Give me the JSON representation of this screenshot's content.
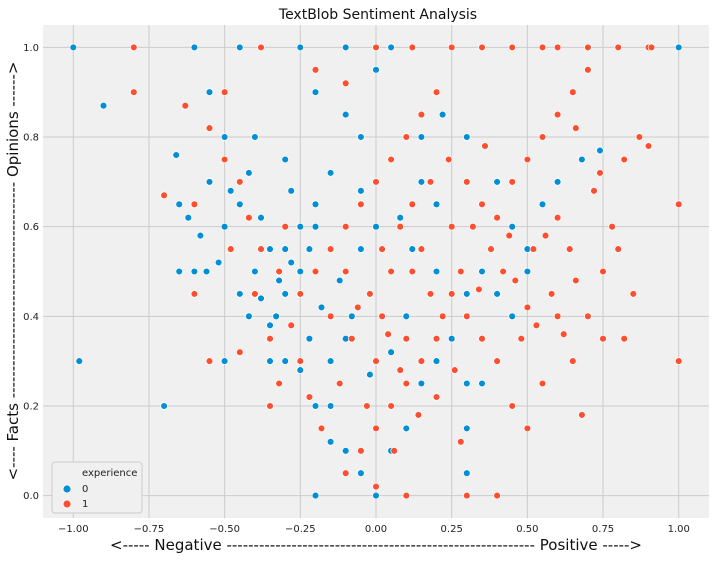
{
  "chart_data": {
    "type": "scatter",
    "title": "TextBlob Sentiment Analysis",
    "xlabel": "<----- Negative --------------------------------------------------------- Positive ----->",
    "ylabel": "<---- Facts ---------------------------------------- Opinions ------>",
    "xlim": [
      -1.1,
      1.1
    ],
    "ylim": [
      -0.05,
      1.05
    ],
    "xticks": [
      -1.0,
      -0.75,
      -0.5,
      -0.25,
      0.0,
      0.25,
      0.5,
      0.75,
      1.0
    ],
    "xtick_labels": [
      "−1.00",
      "−0.75",
      "−0.50",
      "−0.25",
      "0.00",
      "0.25",
      "0.50",
      "0.75",
      "1.00"
    ],
    "yticks": [
      0.0,
      0.2,
      0.4,
      0.6,
      0.8,
      1.0
    ],
    "ytick_labels": [
      "0.0",
      "0.2",
      "0.4",
      "0.6",
      "0.8",
      "1.0"
    ],
    "grid": true,
    "background": "#f0f0f0",
    "legend": {
      "title": "experience",
      "placement": "lower-left"
    },
    "series": [
      {
        "name": "0",
        "color": "#008fd5",
        "points": [
          [
            -1.0,
            1.0
          ],
          [
            -0.9,
            0.87
          ],
          [
            -0.98,
            0.3
          ],
          [
            -0.7,
            0.2
          ],
          [
            -0.65,
            0.5
          ],
          [
            -0.6,
            0.5
          ],
          [
            -0.5,
            0.3
          ],
          [
            -0.65,
            0.65
          ],
          [
            -0.62,
            0.62
          ],
          [
            -0.58,
            0.58
          ],
          [
            -0.55,
            0.7
          ],
          [
            -0.56,
            0.5
          ],
          [
            -0.52,
            0.52
          ],
          [
            -0.5,
            0.8
          ],
          [
            -0.45,
            0.65
          ],
          [
            -0.5,
            0.6
          ],
          [
            -0.66,
            0.76
          ],
          [
            -0.55,
            0.9
          ],
          [
            -0.45,
            0.45
          ],
          [
            -0.4,
            0.5
          ],
          [
            -0.35,
            0.55
          ],
          [
            -0.35,
            0.38
          ],
          [
            -0.3,
            0.55
          ],
          [
            -0.32,
            0.48
          ],
          [
            -0.28,
            0.52
          ],
          [
            -0.3,
            0.45
          ],
          [
            -0.25,
            0.6
          ],
          [
            -0.25,
            0.5
          ],
          [
            -0.22,
            0.55
          ],
          [
            -0.2,
            0.65
          ],
          [
            -0.2,
            0.6
          ],
          [
            -0.28,
            0.68
          ],
          [
            -0.4,
            0.8
          ],
          [
            -0.3,
            0.75
          ],
          [
            -0.35,
            0.3
          ],
          [
            -0.3,
            0.3
          ],
          [
            -0.2,
            0.2
          ],
          [
            -0.15,
            0.2
          ],
          [
            -0.1,
            0.1
          ],
          [
            -0.05,
            0.05
          ],
          [
            0.0,
            0.0
          ],
          [
            -0.2,
            0.0
          ],
          [
            -0.1,
            0.05
          ],
          [
            0.05,
            0.1
          ],
          [
            0.1,
            0.15
          ],
          [
            0.15,
            0.25
          ],
          [
            0.2,
            0.3
          ],
          [
            0.25,
            0.35
          ],
          [
            0.3,
            0.4
          ],
          [
            0.3,
            0.45
          ],
          [
            0.35,
            0.5
          ],
          [
            0.25,
            0.6
          ],
          [
            0.2,
            0.65
          ],
          [
            0.15,
            0.7
          ],
          [
            0.05,
            0.75
          ],
          [
            -0.05,
            0.8
          ],
          [
            -0.1,
            0.85
          ],
          [
            -0.2,
            0.9
          ],
          [
            0.0,
            0.95
          ],
          [
            0.05,
            1.0
          ],
          [
            -0.1,
            1.0
          ],
          [
            -0.25,
            1.0
          ],
          [
            -0.45,
            1.0
          ],
          [
            -0.6,
            1.0
          ],
          [
            0.3,
            0.8
          ],
          [
            0.4,
            0.7
          ],
          [
            0.45,
            0.6
          ],
          [
            0.5,
            0.55
          ],
          [
            0.55,
            0.65
          ],
          [
            0.6,
            0.7
          ],
          [
            0.68,
            0.75
          ],
          [
            0.74,
            0.77
          ],
          [
            0.3,
            0.25
          ],
          [
            0.35,
            0.25
          ],
          [
            0.3,
            0.15
          ],
          [
            -0.15,
            0.3
          ],
          [
            -0.08,
            0.4
          ],
          [
            -0.12,
            0.48
          ],
          [
            -0.05,
            0.55
          ],
          [
            0.08,
            0.62
          ],
          [
            0.12,
            0.55
          ],
          [
            0.2,
            0.5
          ],
          [
            0.1,
            0.4
          ],
          [
            0.05,
            0.32
          ],
          [
            -0.02,
            0.27
          ],
          [
            -0.1,
            0.35
          ],
          [
            -0.18,
            0.42
          ],
          [
            -0.22,
            0.35
          ],
          [
            -0.25,
            0.28
          ],
          [
            0.4,
            0.45
          ],
          [
            0.45,
            0.4
          ],
          [
            0.5,
            0.5
          ],
          [
            -0.42,
            0.72
          ],
          [
            -0.48,
            0.68
          ],
          [
            -0.38,
            0.62
          ],
          [
            0.15,
            0.8
          ],
          [
            0.22,
            0.85
          ],
          [
            -0.05,
            0.68
          ],
          [
            0.0,
            0.6
          ],
          [
            -0.15,
            0.72
          ],
          [
            1.0,
            1.0
          ],
          [
            -0.42,
            0.4
          ],
          [
            -0.38,
            0.44
          ],
          [
            -0.33,
            0.4
          ],
          [
            0.3,
            0.05
          ],
          [
            -0.15,
            0.12
          ]
        ]
      },
      {
        "name": "1",
        "color": "#fc4f30",
        "points": [
          [
            -0.8,
            1.0
          ],
          [
            -0.8,
            0.9
          ],
          [
            -0.7,
            0.67
          ],
          [
            -0.63,
            0.87
          ],
          [
            -0.6,
            0.45
          ],
          [
            -0.5,
            0.9
          ],
          [
            -0.48,
            0.55
          ],
          [
            -0.4,
            0.45
          ],
          [
            -0.35,
            0.35
          ],
          [
            -0.3,
            0.6
          ],
          [
            -0.25,
            0.45
          ],
          [
            -0.2,
            0.5
          ],
          [
            -0.15,
            0.55
          ],
          [
            -0.1,
            0.6
          ],
          [
            -0.05,
            0.65
          ],
          [
            0.0,
            0.7
          ],
          [
            0.05,
            0.75
          ],
          [
            0.1,
            0.8
          ],
          [
            0.15,
            0.85
          ],
          [
            0.2,
            0.9
          ],
          [
            0.25,
            1.0
          ],
          [
            0.35,
            1.0
          ],
          [
            0.45,
            1.0
          ],
          [
            0.55,
            1.0
          ],
          [
            0.6,
            1.0
          ],
          [
            0.7,
            1.0
          ],
          [
            0.8,
            1.0
          ],
          [
            0.9,
            1.0
          ],
          [
            0.91,
            1.0
          ],
          [
            1.0,
            0.65
          ],
          [
            1.0,
            0.3
          ],
          [
            0.85,
            0.45
          ],
          [
            0.8,
            0.55
          ],
          [
            0.75,
            0.35
          ],
          [
            0.7,
            0.4
          ],
          [
            0.65,
            0.3
          ],
          [
            0.6,
            0.4
          ],
          [
            0.55,
            0.25
          ],
          [
            0.5,
            0.15
          ],
          [
            0.45,
            0.2
          ],
          [
            0.4,
            0.3
          ],
          [
            0.35,
            0.35
          ],
          [
            0.3,
            0.4
          ],
          [
            0.25,
            0.45
          ],
          [
            0.2,
            0.35
          ],
          [
            0.15,
            0.3
          ],
          [
            0.1,
            0.25
          ],
          [
            0.05,
            0.2
          ],
          [
            0.0,
            0.15
          ],
          [
            -0.05,
            0.1
          ],
          [
            -0.1,
            0.05
          ],
          [
            0.0,
            0.02
          ],
          [
            0.1,
            0.0
          ],
          [
            0.3,
            0.0
          ],
          [
            0.4,
            0.0
          ],
          [
            -0.35,
            0.2
          ],
          [
            -0.25,
            0.3
          ],
          [
            -0.15,
            0.4
          ],
          [
            0.05,
            0.5
          ],
          [
            0.15,
            0.55
          ],
          [
            0.25,
            0.6
          ],
          [
            0.35,
            0.65
          ],
          [
            0.45,
            0.7
          ],
          [
            0.5,
            0.75
          ],
          [
            0.55,
            0.8
          ],
          [
            0.6,
            0.85
          ],
          [
            0.65,
            0.9
          ],
          [
            0.7,
            0.95
          ],
          [
            0.75,
            0.5
          ],
          [
            0.78,
            0.6
          ],
          [
            0.82,
            0.75
          ],
          [
            0.87,
            0.8
          ],
          [
            0.9,
            0.78
          ],
          [
            0.68,
            0.18
          ],
          [
            0.62,
            0.36
          ],
          [
            0.58,
            0.45
          ],
          [
            0.52,
            0.55
          ],
          [
            0.48,
            0.35
          ],
          [
            0.42,
            0.5
          ],
          [
            0.38,
            0.55
          ],
          [
            0.32,
            0.6
          ],
          [
            0.28,
            0.5
          ],
          [
            0.22,
            0.4
          ],
          [
            0.18,
            0.45
          ],
          [
            0.12,
            0.5
          ],
          [
            0.08,
            0.6
          ],
          [
            0.02,
            0.55
          ],
          [
            -0.02,
            0.45
          ],
          [
            -0.08,
            0.35
          ],
          [
            -0.12,
            0.25
          ],
          [
            -0.18,
            0.15
          ],
          [
            -0.22,
            0.22
          ],
          [
            -0.28,
            0.38
          ],
          [
            -0.32,
            0.5
          ],
          [
            -0.38,
            0.55
          ],
          [
            -0.42,
            0.62
          ],
          [
            -0.45,
            0.7
          ],
          [
            -0.5,
            0.75
          ],
          [
            -0.55,
            0.82
          ],
          [
            -0.6,
            0.65
          ],
          [
            0.0,
            0.3
          ],
          [
            0.02,
            0.4
          ],
          [
            -0.03,
            0.2
          ],
          [
            0.06,
            0.1
          ],
          [
            0.1,
            0.35
          ],
          [
            0.12,
            0.65
          ],
          [
            0.18,
            0.7
          ],
          [
            0.24,
            0.75
          ],
          [
            0.3,
            0.7
          ],
          [
            0.36,
            0.78
          ],
          [
            0.4,
            0.62
          ],
          [
            0.44,
            0.58
          ],
          [
            0.46,
            0.48
          ],
          [
            0.5,
            0.42
          ],
          [
            0.53,
            0.38
          ],
          [
            0.56,
            0.58
          ],
          [
            0.6,
            0.62
          ],
          [
            0.64,
            0.55
          ],
          [
            0.66,
            0.48
          ],
          [
            0.72,
            0.68
          ],
          [
            0.74,
            0.72
          ],
          [
            -0.1,
            0.5
          ],
          [
            -0.06,
            0.42
          ],
          [
            0.04,
            0.36
          ],
          [
            0.08,
            0.28
          ],
          [
            0.14,
            0.18
          ],
          [
            0.2,
            0.22
          ],
          [
            0.26,
            0.28
          ],
          [
            0.28,
            0.12
          ],
          [
            0.34,
            0.46
          ],
          [
            -0.2,
            0.95
          ],
          [
            -0.1,
            0.92
          ],
          [
            0.0,
            1.0
          ],
          [
            0.12,
            1.0
          ],
          [
            -0.38,
            1.0
          ],
          [
            -0.55,
            0.3
          ],
          [
            -0.32,
            0.25
          ],
          [
            -0.45,
            0.32
          ],
          [
            0.66,
            0.82
          ],
          [
            0.82,
            0.35
          ]
        ]
      }
    ]
  }
}
